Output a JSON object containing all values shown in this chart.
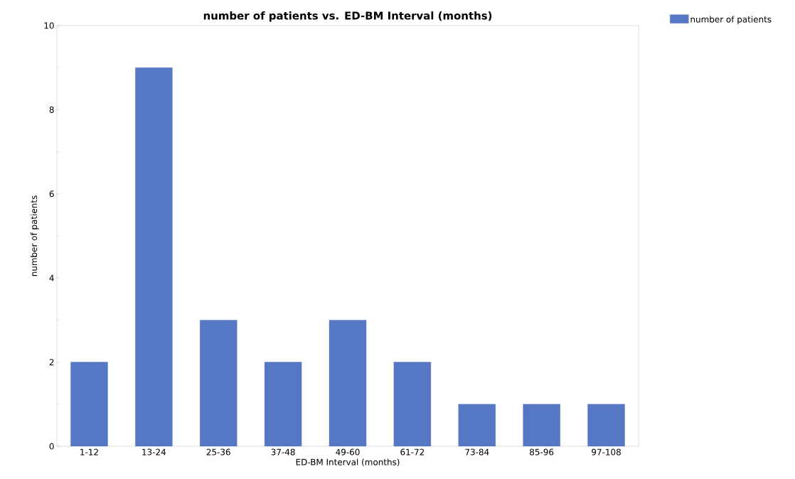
{
  "chart_data": {
    "type": "bar",
    "title": "number of patients vs. ED-BM Interval (months)",
    "xlabel": "ED-BM Interval (months)",
    "ylabel": "number of patients",
    "categories": [
      "1-12",
      "13-24",
      "25-36",
      "37-48",
      "49-60",
      "61-72",
      "73-84",
      "85-96",
      "97-108"
    ],
    "series": [
      {
        "name": "number of patients",
        "color": "#5577c4",
        "values": [
          2,
          9,
          3,
          2,
          3,
          2,
          1,
          1,
          1
        ]
      }
    ],
    "ylim": [
      0,
      10
    ],
    "yticks": [
      0,
      2,
      4,
      6,
      8,
      10
    ],
    "grid": false,
    "legend": "top right"
  }
}
